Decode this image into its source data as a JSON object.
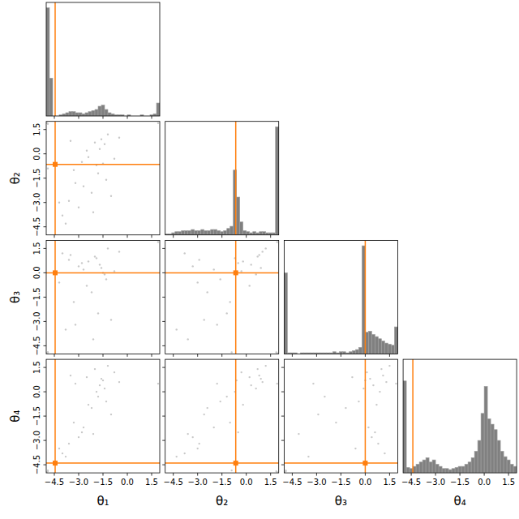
{
  "chart_data": {
    "type": "corner",
    "labels": [
      "θ₁",
      "θ₂",
      "θ₃",
      "θ₄"
    ],
    "xlim": [
      -5,
      2
    ],
    "ylim": [
      -5,
      2
    ],
    "xticks": [
      {
        "value": -4.5,
        "label": "−4.5"
      },
      {
        "value": -3.0,
        "label": "−3.0"
      },
      {
        "value": -1.5,
        "label": "−1.5"
      },
      {
        "value": 0.0,
        "label": "0.0"
      },
      1.5
    ],
    "yticks": [
      {
        "value": -4.5,
        "label": "−4.5"
      },
      {
        "value": -3.0,
        "label": "−3.0"
      },
      {
        "value": -1.5,
        "label": "−1.5"
      },
      {
        "value": 0.0,
        "label": "0.0"
      },
      1.5
    ],
    "truths": {
      "values": [
        -4.45,
        -0.65,
        0.0,
        -4.4
      ],
      "color": "#ff7f0e"
    },
    "histograms": [
      {
        "color": "#808080",
        "ylim": [
          0,
          105
        ],
        "bins": [
          -5,
          -4.8,
          -4.6,
          -4.4,
          -4.2,
          -4,
          -3.8,
          -3.6,
          -3.4,
          -3.2,
          -3,
          -2.8,
          -2.6,
          -2.4,
          -2.2,
          -2,
          -1.8,
          -1.6,
          -1.4,
          -1.2,
          -1,
          -0.8,
          -0.6,
          -0.4,
          -0.2,
          0,
          0.2,
          0.4,
          0.6,
          0.8,
          1,
          1.2,
          1.4,
          1.6,
          1.8,
          2
        ],
        "counts": [
          100,
          35,
          0,
          0,
          1,
          2,
          3,
          4,
          4,
          3,
          3,
          2,
          3,
          4,
          5,
          6,
          9,
          10,
          6,
          3,
          2,
          1,
          1,
          1,
          0,
          1,
          0,
          0,
          0,
          1,
          0,
          0,
          1,
          2,
          12
        ]
      },
      {
        "color": "#808080",
        "ylim": [
          0,
          105
        ],
        "bins": [
          -5,
          -4.8,
          -4.6,
          -4.4,
          -4.2,
          -4,
          -3.8,
          -3.6,
          -3.4,
          -3.2,
          -3,
          -2.8,
          -2.6,
          -2.4,
          -2.2,
          -2,
          -1.8,
          -1.6,
          -1.4,
          -1.2,
          -1,
          -0.8,
          -0.6,
          -0.4,
          -0.2,
          0,
          0.2,
          0.4,
          0.6,
          0.8,
          1,
          1.2,
          1.4,
          1.6,
          1.8,
          2
        ],
        "counts": [
          1,
          1,
          2,
          3,
          3,
          4,
          4,
          4,
          5,
          4,
          4,
          5,
          4,
          4,
          5,
          5,
          4,
          3,
          4,
          6,
          8,
          60,
          35,
          12,
          4,
          3,
          2,
          3,
          2,
          3,
          3,
          2,
          2,
          2,
          100
        ]
      },
      {
        "color": "#808080",
        "ylim": [
          0,
          105
        ],
        "bins": [
          -5,
          -4.8,
          -4.6,
          -4.4,
          -4.2,
          -4,
          -3.8,
          -3.6,
          -3.4,
          -3.2,
          -3,
          -2.8,
          -2.6,
          -2.4,
          -2.2,
          -2,
          -1.8,
          -1.6,
          -1.4,
          -1.2,
          -1,
          -0.8,
          -0.6,
          -0.4,
          -0.2,
          0,
          0.2,
          0.4,
          0.6,
          0.8,
          1,
          1.2,
          1.4,
          1.6,
          1.8,
          2
        ],
        "counts": [
          75,
          1,
          1,
          1,
          0,
          1,
          1,
          1,
          1,
          1,
          1,
          1,
          1,
          1,
          1,
          2,
          1,
          2,
          2,
          1,
          2,
          3,
          4,
          6,
          100,
          20,
          21,
          18,
          16,
          14,
          12,
          10,
          9,
          8,
          25
        ]
      },
      {
        "color": "#808080",
        "ylim": [
          0,
          105
        ],
        "bins": [
          -5,
          -4.8,
          -4.6,
          -4.4,
          -4.2,
          -4,
          -3.8,
          -3.6,
          -3.4,
          -3.2,
          -3,
          -2.8,
          -2.6,
          -2.4,
          -2.2,
          -2,
          -1.8,
          -1.6,
          -1.4,
          -1.2,
          -1,
          -0.8,
          -0.6,
          -0.4,
          -0.2,
          0,
          0.2,
          0.4,
          0.6,
          0.8,
          1,
          1.2,
          1.4,
          1.6,
          1.8,
          2
        ],
        "counts": [
          85,
          5,
          4,
          6,
          8,
          10,
          12,
          14,
          10,
          12,
          8,
          6,
          4,
          4,
          3,
          4,
          5,
          6,
          6,
          8,
          10,
          14,
          20,
          30,
          55,
          80,
          50,
          45,
          40,
          30,
          20,
          15,
          12,
          8,
          6
        ]
      }
    ],
    "samples": {
      "color": "#c8c8c8",
      "values": [
        [
          -4.95,
          1.9,
          -4.95,
          -4.95
        ],
        [
          -4.9,
          1.85,
          -4.9,
          -4.9
        ],
        [
          -4.9,
          -0.9,
          -4.9,
          -4.85
        ],
        [
          -3.2,
          -1.8,
          -3.2,
          0.5
        ],
        [
          -2.8,
          -0.5,
          0.6,
          -2.5
        ],
        [
          -1.6,
          0.9,
          0.3,
          0.8
        ],
        [
          -1.4,
          0.6,
          -0.1,
          0.2
        ],
        [
          -1.8,
          -1.2,
          -2.5,
          -0.3
        ],
        [
          -3.6,
          -2.9,
          0.8,
          -3.2
        ],
        [
          -4.0,
          -3.8,
          1.2,
          -3.8
        ],
        [
          -2.2,
          -2.4,
          -1.2,
          -1.0
        ],
        [
          -1.2,
          1.2,
          1.5,
          1.6
        ],
        [
          -0.8,
          -0.3,
          0.1,
          1.2
        ],
        [
          -2.5,
          0.2,
          -0.8,
          0.9
        ],
        [
          -3.0,
          -3.3,
          0.4,
          -2.8
        ],
        [
          -1.9,
          -0.7,
          0.9,
          0.0
        ],
        [
          -3.8,
          -4.3,
          -3.5,
          -4.0
        ],
        [
          -2.0,
          0.7,
          1.0,
          1.4
        ],
        [
          -1.3,
          -1.6,
          -0.4,
          -0.6
        ],
        [
          -3.3,
          -1.0,
          -1.8,
          -1.9
        ],
        [
          -2.7,
          -2.0,
          0.2,
          -2.2
        ],
        [
          -0.5,
          1.0,
          1.3,
          0.6
        ],
        [
          -1.7,
          0.3,
          0.5,
          0.4
        ],
        [
          -4.2,
          -3.0,
          -0.6,
          -3.5
        ],
        [
          -2.4,
          -0.2,
          0.7,
          -0.8
        ],
        [
          -1.0,
          -2.6,
          -2.9,
          -1.4
        ],
        [
          -3.5,
          0.8,
          1.1,
          1.0
        ],
        [
          -2.1,
          -3.6,
          -4.1,
          -2.6
        ],
        [
          1.9,
          1.9,
          1.9,
          0.5
        ],
        [
          -1.5,
          -0.6,
          0.0,
          0.7
        ]
      ]
    }
  }
}
